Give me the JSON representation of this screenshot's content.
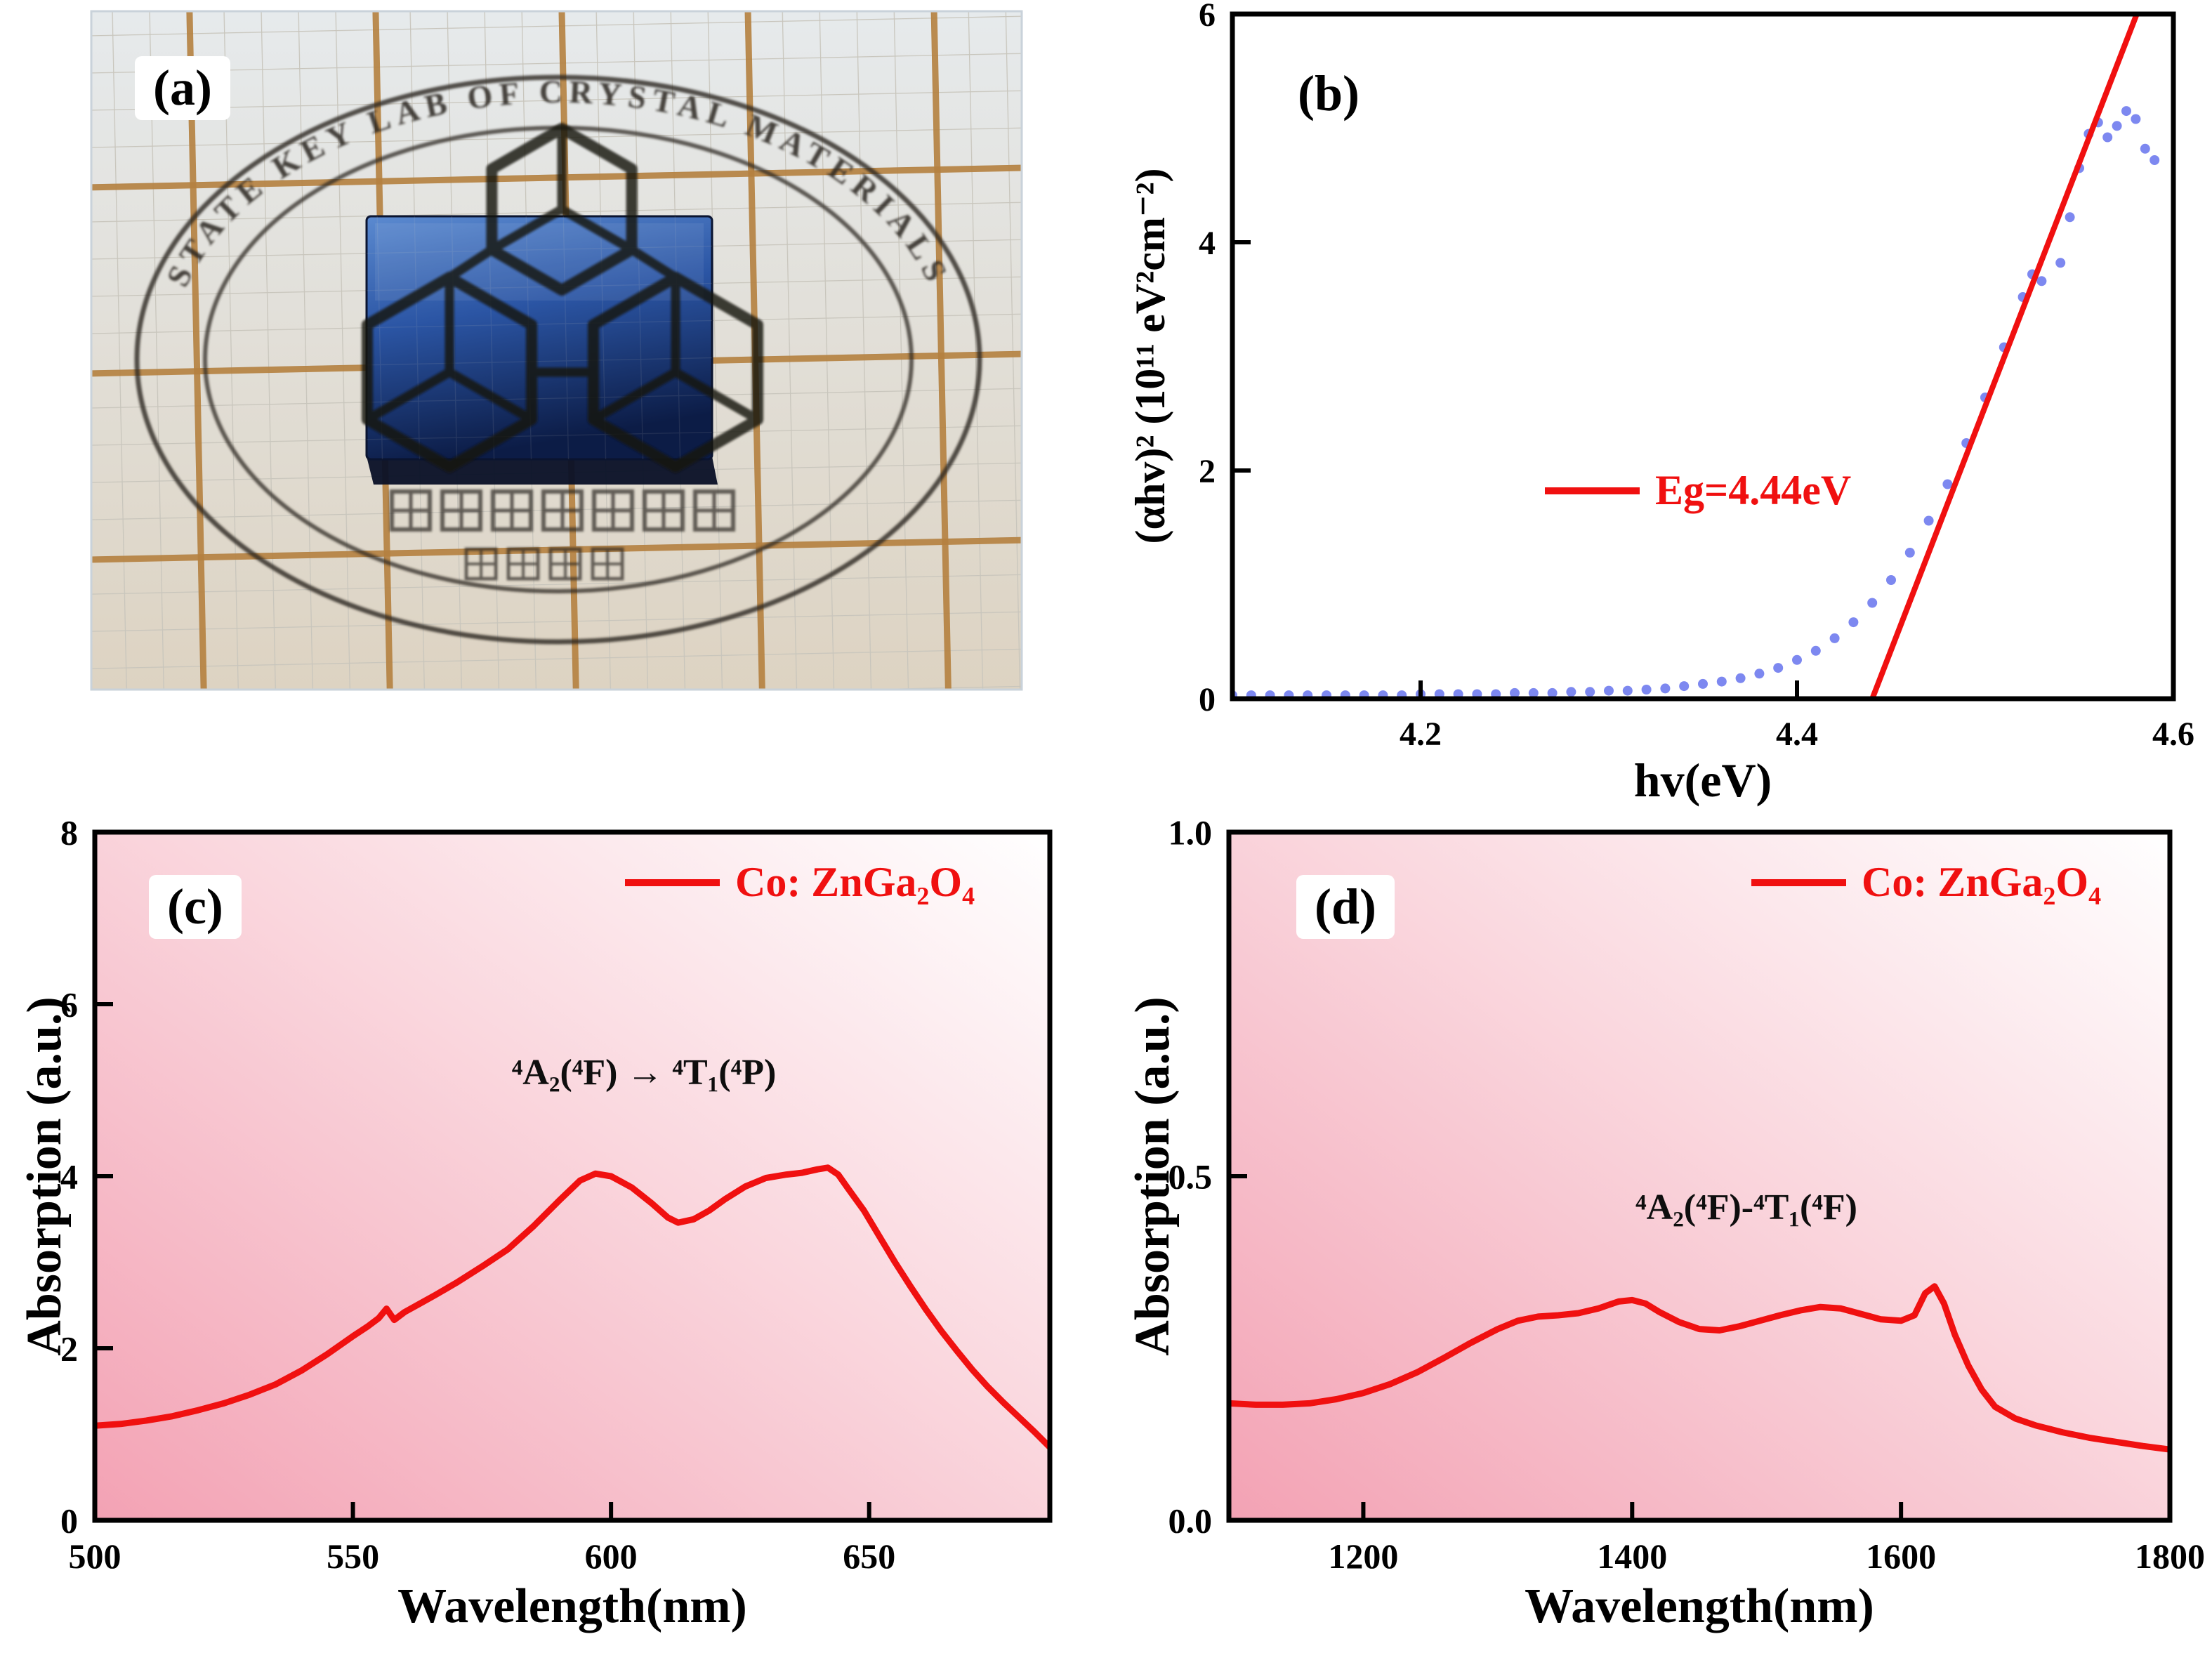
{
  "figure": {
    "background_color": "#ffffff",
    "panels": [
      {
        "id": "a",
        "label": "(a)"
      },
      {
        "id": "b",
        "label": "(b)"
      },
      {
        "id": "c",
        "label": "(c)"
      },
      {
        "id": "d",
        "label": "(d)"
      }
    ]
  },
  "photo": {
    "stamp_arc_text": "STATE KEY LAB OF CRYSTAL MATERIALS",
    "colors": {
      "paper_major_line": "#b5813f",
      "stamp_ink": "#2b2722",
      "crystal_blue_top": "#5b8ad0",
      "crystal_blue_bottom": "#0c1c46"
    }
  },
  "chart_data": [
    {
      "id": "b",
      "type": "scatter",
      "xlabel": "hv(eV)",
      "ylabel": "(αhv)² (10¹¹ eV²cm⁻²)",
      "xlim": [
        4.1,
        4.6
      ],
      "ylim": [
        0,
        6
      ],
      "grid": false,
      "xticks": {
        "values": [
          4.2,
          4.4,
          4.6
        ],
        "labels": [
          "4.2",
          "4.4",
          "4.6"
        ]
      },
      "yticks": {
        "values": [
          0,
          2,
          4,
          6
        ],
        "labels": [
          "0",
          "2",
          "4",
          "6"
        ]
      },
      "legend": {
        "label": "Eg=4.44eV",
        "color": "#f01010",
        "position": "inside center"
      },
      "series": [
        {
          "name": "tauc-data",
          "type": "scatter",
          "color": "#7d88f0",
          "marker_radius": 7,
          "x": [
            4.1,
            4.11,
            4.12,
            4.13,
            4.14,
            4.15,
            4.16,
            4.17,
            4.18,
            4.19,
            4.2,
            4.21,
            4.22,
            4.23,
            4.24,
            4.25,
            4.26,
            4.27,
            4.28,
            4.29,
            4.3,
            4.31,
            4.32,
            4.33,
            4.34,
            4.35,
            4.36,
            4.37,
            4.38,
            4.39,
            4.4,
            4.41,
            4.42,
            4.43,
            4.44,
            4.45,
            4.46,
            4.47,
            4.48,
            4.49,
            4.5,
            4.51,
            4.52,
            4.525,
            4.53,
            4.54,
            4.545,
            4.55,
            4.555,
            4.56,
            4.565,
            4.57,
            4.575,
            4.58,
            4.585,
            4.59
          ],
          "y": [
            0.03,
            0.03,
            0.03,
            0.03,
            0.03,
            0.03,
            0.03,
            0.03,
            0.03,
            0.03,
            0.04,
            0.04,
            0.04,
            0.04,
            0.04,
            0.05,
            0.05,
            0.05,
            0.06,
            0.06,
            0.07,
            0.07,
            0.08,
            0.09,
            0.11,
            0.13,
            0.15,
            0.18,
            0.22,
            0.27,
            0.34,
            0.42,
            0.53,
            0.67,
            0.84,
            1.04,
            1.28,
            1.56,
            1.88,
            2.24,
            2.64,
            3.08,
            3.52,
            3.72,
            3.66,
            3.82,
            4.22,
            4.65,
            4.95,
            5.05,
            4.92,
            5.02,
            5.15,
            5.08,
            4.82,
            4.72
          ]
        },
        {
          "name": "linear-fit",
          "type": "line",
          "color": "#f01010",
          "width": 8,
          "x": [
            4.44,
            4.592
          ],
          "y": [
            0,
            6.49
          ]
        }
      ]
    },
    {
      "id": "c",
      "type": "line",
      "xlabel": "Wavelength(nm)",
      "ylabel": "Absorption (a.u.)",
      "xlim": [
        500,
        685
      ],
      "ylim": [
        0,
        8
      ],
      "grid": false,
      "xticks": {
        "values": [
          500,
          550,
          600,
          650
        ],
        "labels": [
          "500",
          "550",
          "600",
          "650"
        ]
      },
      "yticks": {
        "values": [
          0,
          2,
          4,
          6,
          8
        ],
        "labels": [
          "0",
          "2",
          "4",
          "6",
          "8"
        ]
      },
      "background": {
        "gradient": true,
        "from": "#f3a2b4",
        "mid": "#fad7de",
        "to": "#ffffff"
      },
      "legend": {
        "label": "Co: ZnGa₂O₄",
        "color": "#f01010",
        "position": "inside top-right"
      },
      "annotation": {
        "text": "⁴A₂(⁴F) → ⁴T₁(⁴P)",
        "color": "#0e0e0e"
      },
      "series": [
        {
          "name": "visible-absorption",
          "type": "line",
          "color": "#f01010",
          "width": 9,
          "x": [
            500,
            505,
            510,
            515,
            520,
            525,
            530,
            535,
            540,
            545,
            550,
            553,
            555,
            556.5,
            558,
            560,
            563,
            566,
            570,
            575,
            580,
            585,
            590,
            594,
            597,
            600,
            604,
            608,
            611,
            613,
            616,
            619,
            622,
            626,
            630,
            634,
            637,
            640,
            642,
            644,
            646,
            649,
            652,
            655,
            658,
            661,
            664,
            667,
            670,
            673,
            676,
            679,
            682,
            685
          ],
          "y": [
            1.1,
            1.12,
            1.16,
            1.21,
            1.28,
            1.36,
            1.46,
            1.58,
            1.74,
            1.93,
            2.14,
            2.26,
            2.35,
            2.46,
            2.33,
            2.42,
            2.52,
            2.62,
            2.76,
            2.95,
            3.15,
            3.42,
            3.72,
            3.95,
            4.03,
            4.0,
            3.87,
            3.68,
            3.52,
            3.46,
            3.5,
            3.6,
            3.73,
            3.88,
            3.98,
            4.02,
            4.04,
            4.08,
            4.1,
            4.02,
            3.85,
            3.6,
            3.3,
            3.0,
            2.72,
            2.45,
            2.2,
            1.97,
            1.75,
            1.55,
            1.37,
            1.2,
            1.03,
            0.85
          ]
        }
      ]
    },
    {
      "id": "d",
      "type": "line",
      "xlabel": "Wavelength(nm)",
      "ylabel": "Absorption (a.u.)",
      "xlim": [
        1100,
        1800
      ],
      "ylim": [
        0,
        1
      ],
      "grid": false,
      "xticks": {
        "values": [
          1200,
          1400,
          1600,
          1800
        ],
        "labels": [
          "1200",
          "1400",
          "1600",
          "1800"
        ]
      },
      "yticks": {
        "values": [
          0,
          0.5,
          1
        ],
        "labels": [
          "0.0",
          "0.5",
          "1.0"
        ]
      },
      "background": {
        "gradient": true,
        "from": "#f3a2b4",
        "mid": "#fad7de",
        "to": "#ffffff"
      },
      "legend": {
        "label": "Co: ZnGa₂O₄",
        "color": "#f01010",
        "position": "inside top-right"
      },
      "annotation": {
        "text": "⁴A₂(⁴F)-⁴T₁(⁴F)",
        "color": "#0e0e0e"
      },
      "series": [
        {
          "name": "nir-absorption",
          "type": "line",
          "color": "#f01010",
          "width": 9,
          "x": [
            1100,
            1120,
            1140,
            1160,
            1180,
            1200,
            1220,
            1240,
            1260,
            1280,
            1300,
            1315,
            1330,
            1345,
            1360,
            1375,
            1390,
            1400,
            1410,
            1420,
            1435,
            1450,
            1465,
            1480,
            1495,
            1510,
            1525,
            1540,
            1555,
            1570,
            1585,
            1600,
            1610,
            1618,
            1625,
            1632,
            1640,
            1650,
            1660,
            1670,
            1685,
            1700,
            1720,
            1740,
            1760,
            1780,
            1800
          ],
          "y": [
            0.17,
            0.168,
            0.168,
            0.17,
            0.176,
            0.185,
            0.198,
            0.215,
            0.236,
            0.258,
            0.278,
            0.29,
            0.296,
            0.298,
            0.301,
            0.308,
            0.318,
            0.32,
            0.315,
            0.303,
            0.288,
            0.278,
            0.276,
            0.282,
            0.29,
            0.298,
            0.305,
            0.31,
            0.308,
            0.3,
            0.292,
            0.29,
            0.298,
            0.33,
            0.34,
            0.315,
            0.27,
            0.225,
            0.19,
            0.165,
            0.148,
            0.138,
            0.128,
            0.12,
            0.114,
            0.108,
            0.103
          ]
        }
      ]
    }
  ]
}
